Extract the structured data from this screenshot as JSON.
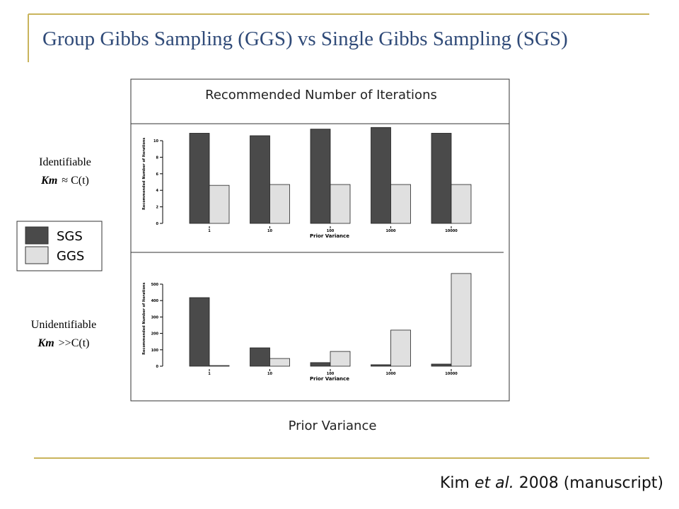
{
  "slide": {
    "title": "Group Gibbs Sampling (GGS) vs Single Gibbs Sampling (SGS)",
    "panel_title": "Recommended Number of Iterations",
    "panel_x_label": "Prior Variance",
    "left_labels": [
      {
        "line1": "Identifiable",
        "km": "Km",
        "relation": "≈ C(t)"
      },
      {
        "line1": "Unidentifiable",
        "km": "Km",
        "relation": ">>C(t)"
      }
    ],
    "citation": {
      "author": "Kim",
      "etal": "et al.",
      "rest": "2008 (manuscript)"
    }
  },
  "chart_data": [
    {
      "type": "bar",
      "categories": [
        "1",
        "10",
        "100",
        "1000",
        "10000"
      ],
      "x_label": "Prior Variance",
      "y_label": "Recommended Number of Iterations",
      "series": [
        {
          "name": "SGS",
          "color": "#4a4a4a",
          "values": [
            10.9,
            10.6,
            11.4,
            11.6,
            10.9
          ]
        },
        {
          "name": "GGS",
          "color": "#e0e0e0",
          "values": [
            4.6,
            4.7,
            4.7,
            4.7,
            4.7
          ]
        }
      ],
      "ylim": [
        0,
        12
      ],
      "yticks": [
        0,
        2,
        4,
        6,
        8,
        10
      ]
    },
    {
      "type": "bar",
      "categories": [
        "1",
        "10",
        "100",
        "1000",
        "10000"
      ],
      "x_label": "Prior Variance",
      "y_label": "Recommended Number of Iterations",
      "series": [
        {
          "name": "SGS",
          "color": "#4a4a4a",
          "values": [
            418,
            112,
            22,
            9,
            13
          ]
        },
        {
          "name": "GGS",
          "color": "#e0e0e0",
          "values": [
            4,
            47,
            90,
            220,
            565
          ]
        }
      ],
      "ylim": [
        0,
        580
      ],
      "yticks": [
        0,
        100,
        200,
        300,
        400,
        500
      ]
    }
  ]
}
